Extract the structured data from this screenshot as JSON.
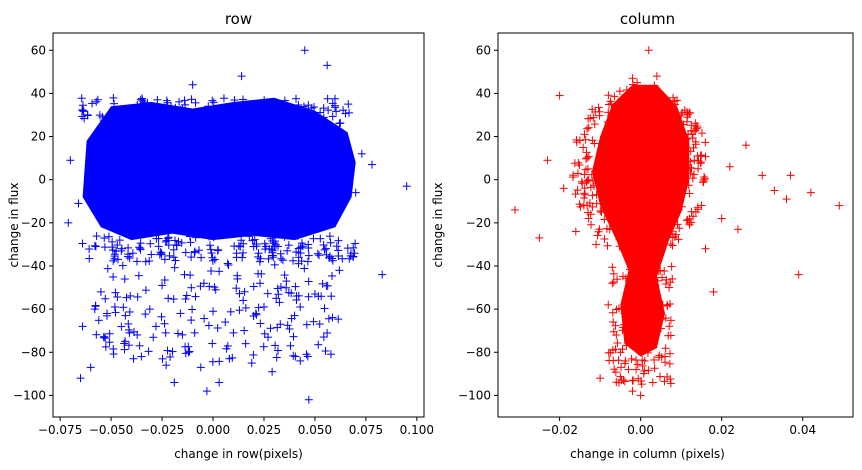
{
  "chart_data": [
    {
      "type": "scatter",
      "title": "row",
      "xlabel": "change in row(pixels)",
      "ylabel": "change in flux",
      "xlim": [
        -0.0785,
        0.1035
      ],
      "ylim": [
        -110,
        68
      ],
      "xticks": [
        -0.075,
        -0.05,
        -0.025,
        0.0,
        0.025,
        0.05,
        0.075,
        0.1
      ],
      "xtick_labels": [
        "−0.075",
        "−0.050",
        "−0.025",
        "0.000",
        "0.025",
        "0.050",
        "0.075",
        "0.100"
      ],
      "yticks": [
        -100,
        -80,
        -60,
        -40,
        -20,
        0,
        20,
        40,
        60
      ],
      "ytick_labels": [
        "−100",
        "−80",
        "−60",
        "−40",
        "−20",
        "0",
        "20",
        "40",
        "60"
      ],
      "grid": false,
      "marker": "+",
      "color": "#0000ff",
      "points": [
        [
          -0.07,
          9
        ],
        [
          -0.071,
          -20
        ],
        [
          -0.066,
          -11
        ],
        [
          -0.064,
          -68
        ],
        [
          -0.065,
          -92
        ],
        [
          -0.06,
          -87
        ],
        [
          -0.058,
          -60
        ],
        [
          -0.055,
          -52
        ],
        [
          -0.052,
          -62
        ],
        [
          -0.045,
          -33
        ],
        [
          -0.043,
          -63
        ],
        [
          -0.041,
          -71
        ],
        [
          -0.039,
          -83
        ],
        [
          -0.036,
          -77
        ],
        [
          -0.033,
          -38
        ],
        [
          -0.031,
          -60
        ],
        [
          -0.028,
          -68
        ],
        [
          -0.025,
          -49
        ],
        [
          -0.023,
          -86
        ],
        [
          -0.022,
          -55
        ],
        [
          -0.019,
          -94
        ],
        [
          -0.016,
          -62
        ],
        [
          -0.014,
          -44
        ],
        [
          -0.012,
          -80
        ],
        [
          -0.01,
          44
        ],
        [
          -0.009,
          -71
        ],
        [
          -0.006,
          -87
        ],
        [
          -0.003,
          -98
        ],
        [
          0.0,
          -61
        ],
        [
          0.003,
          -94
        ],
        [
          0.006,
          -66
        ],
        [
          0.008,
          -83
        ],
        [
          0.01,
          -71
        ],
        [
          0.012,
          -46
        ],
        [
          0.014,
          48
        ],
        [
          0.016,
          -76
        ],
        [
          0.019,
          -85
        ],
        [
          0.021,
          -62
        ],
        [
          0.023,
          -38
        ],
        [
          0.025,
          -59
        ],
        [
          0.027,
          -73
        ],
        [
          0.029,
          -89
        ],
        [
          0.031,
          -55
        ],
        [
          0.033,
          -67
        ],
        [
          0.036,
          -47
        ],
        [
          0.038,
          -77
        ],
        [
          0.04,
          -63
        ],
        [
          0.043,
          -34
        ],
        [
          0.045,
          60
        ],
        [
          0.047,
          -102
        ],
        [
          0.05,
          -53
        ],
        [
          0.052,
          -35
        ],
        [
          0.056,
          53
        ],
        [
          0.058,
          -54
        ],
        [
          0.062,
          -42
        ],
        [
          0.07,
          -6
        ],
        [
          0.073,
          12
        ],
        [
          0.078,
          7
        ],
        [
          0.083,
          -44
        ],
        [
          0.095,
          -3
        ]
      ]
    },
    {
      "type": "scatter",
      "title": "column",
      "xlabel": "change in column (pixels)",
      "ylabel": "change in flux",
      "xlim": [
        -0.0352,
        0.0524
      ],
      "ylim": [
        -110,
        68
      ],
      "xticks": [
        -0.02,
        0.0,
        0.02,
        0.04
      ],
      "xtick_labels": [
        "−0.02",
        "0.00",
        "0.02",
        "0.04"
      ],
      "yticks": [
        -100,
        -80,
        -60,
        -40,
        -20,
        0,
        20,
        40,
        60
      ],
      "ytick_labels": [
        "−100",
        "−80",
        "−60",
        "−40",
        "−20",
        "0",
        "20",
        "40",
        "60"
      ],
      "grid": false,
      "marker": "+",
      "color": "#ff0000",
      "points": [
        [
          -0.031,
          -14
        ],
        [
          -0.025,
          -27
        ],
        [
          -0.023,
          9
        ],
        [
          -0.02,
          39
        ],
        [
          -0.019,
          -4
        ],
        [
          -0.016,
          -24
        ],
        [
          -0.014,
          -12
        ],
        [
          -0.013,
          5
        ],
        [
          -0.011,
          -30
        ],
        [
          -0.01,
          -92
        ],
        [
          -0.009,
          18
        ],
        [
          -0.008,
          -58
        ],
        [
          -0.007,
          -48
        ],
        [
          -0.006,
          -72
        ],
        [
          -0.005,
          -80
        ],
        [
          -0.004,
          -62
        ],
        [
          -0.003,
          -88
        ],
        [
          -0.002,
          -98
        ],
        [
          -0.001,
          -66
        ],
        [
          0.0,
          -100
        ],
        [
          0.001,
          -84
        ],
        [
          0.002,
          -75
        ],
        [
          0.003,
          -94
        ],
        [
          0.004,
          -57
        ],
        [
          0.005,
          -69
        ],
        [
          0.006,
          -82
        ],
        [
          0.007,
          -50
        ],
        [
          0.002,
          60
        ],
        [
          0.004,
          48
        ],
        [
          -0.002,
          47
        ],
        [
          0.008,
          38
        ],
        [
          0.01,
          30
        ],
        [
          0.012,
          -20
        ],
        [
          0.014,
          11
        ],
        [
          0.016,
          -32
        ],
        [
          0.018,
          -52
        ],
        [
          0.02,
          -18
        ],
        [
          0.022,
          6
        ],
        [
          0.024,
          -23
        ],
        [
          0.026,
          16
        ],
        [
          0.03,
          2
        ],
        [
          0.033,
          -5
        ],
        [
          0.036,
          -9
        ],
        [
          0.037,
          2
        ],
        [
          0.039,
          -44
        ],
        [
          0.042,
          -6
        ],
        [
          0.049,
          -12
        ]
      ]
    }
  ]
}
